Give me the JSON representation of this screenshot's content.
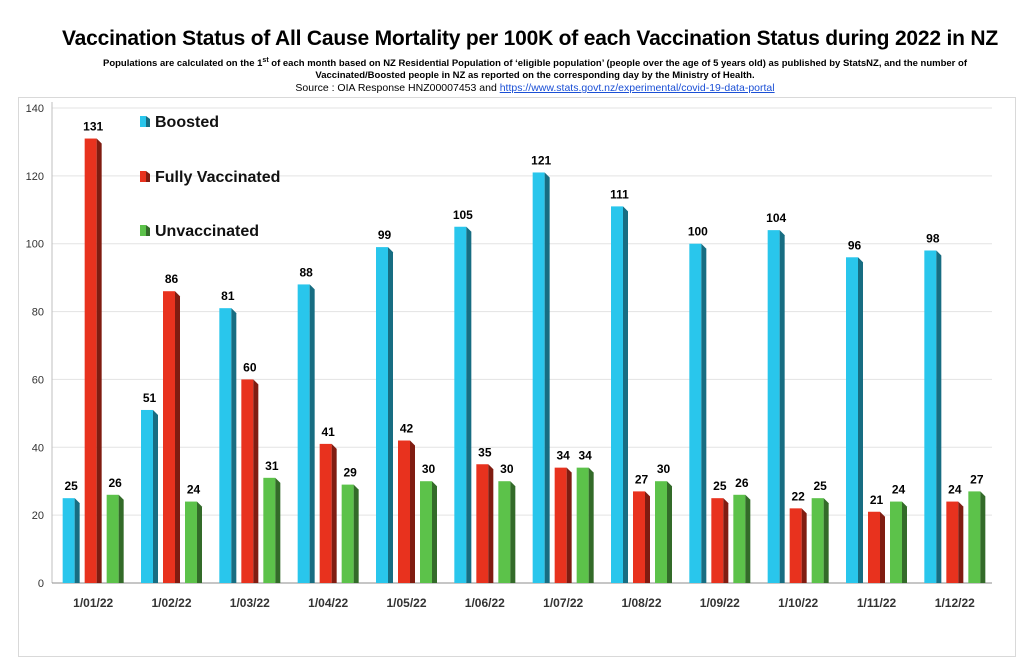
{
  "title": "Vaccination Status of All Cause Mortality per 100K of each Vaccination Status during 2022 in NZ",
  "subtitle": {
    "before_sup": "Populations are calculated on the 1",
    "sup": "st",
    "after_sup": " of each month based on NZ Residential Population of ‘eligible population’ (people over the age of 5 years old) as published by StatsNZ, and the number of",
    "line2": "Vaccinated/Boosted people in NZ as reported on the corresponding day by the Ministry of Health."
  },
  "source": {
    "prefix": "Source : OIA Response HNZ00007453 and ",
    "link": "https://www.stats.govt.nz/experimental/covid-19-data-portal"
  },
  "chart_data": {
    "type": "bar",
    "categories": [
      "1/01/22",
      "1/02/22",
      "1/03/22",
      "1/04/22",
      "1/05/22",
      "1/06/22",
      "1/07/22",
      "1/08/22",
      "1/09/22",
      "1/10/22",
      "1/11/22",
      "1/12/22"
    ],
    "series": [
      {
        "name": "Boosted",
        "color": "#29c6ec",
        "values": [
          25,
          51,
          81,
          88,
          99,
          105,
          121,
          111,
          100,
          104,
          96,
          98
        ]
      },
      {
        "name": "Fully Vaccinated",
        "color": "#e8321e",
        "values": [
          131,
          86,
          60,
          41,
          42,
          35,
          34,
          27,
          25,
          22,
          21,
          24
        ]
      },
      {
        "name": "Unvaccinated",
        "color": "#5cc24a",
        "values": [
          26,
          24,
          31,
          29,
          30,
          30,
          34,
          30,
          26,
          25,
          24,
          27
        ]
      }
    ],
    "ylim": [
      0,
      140
    ],
    "yticks": [
      0,
      20,
      40,
      60,
      80,
      100,
      120,
      140
    ],
    "grid": true,
    "legend_position": "top-left"
  }
}
